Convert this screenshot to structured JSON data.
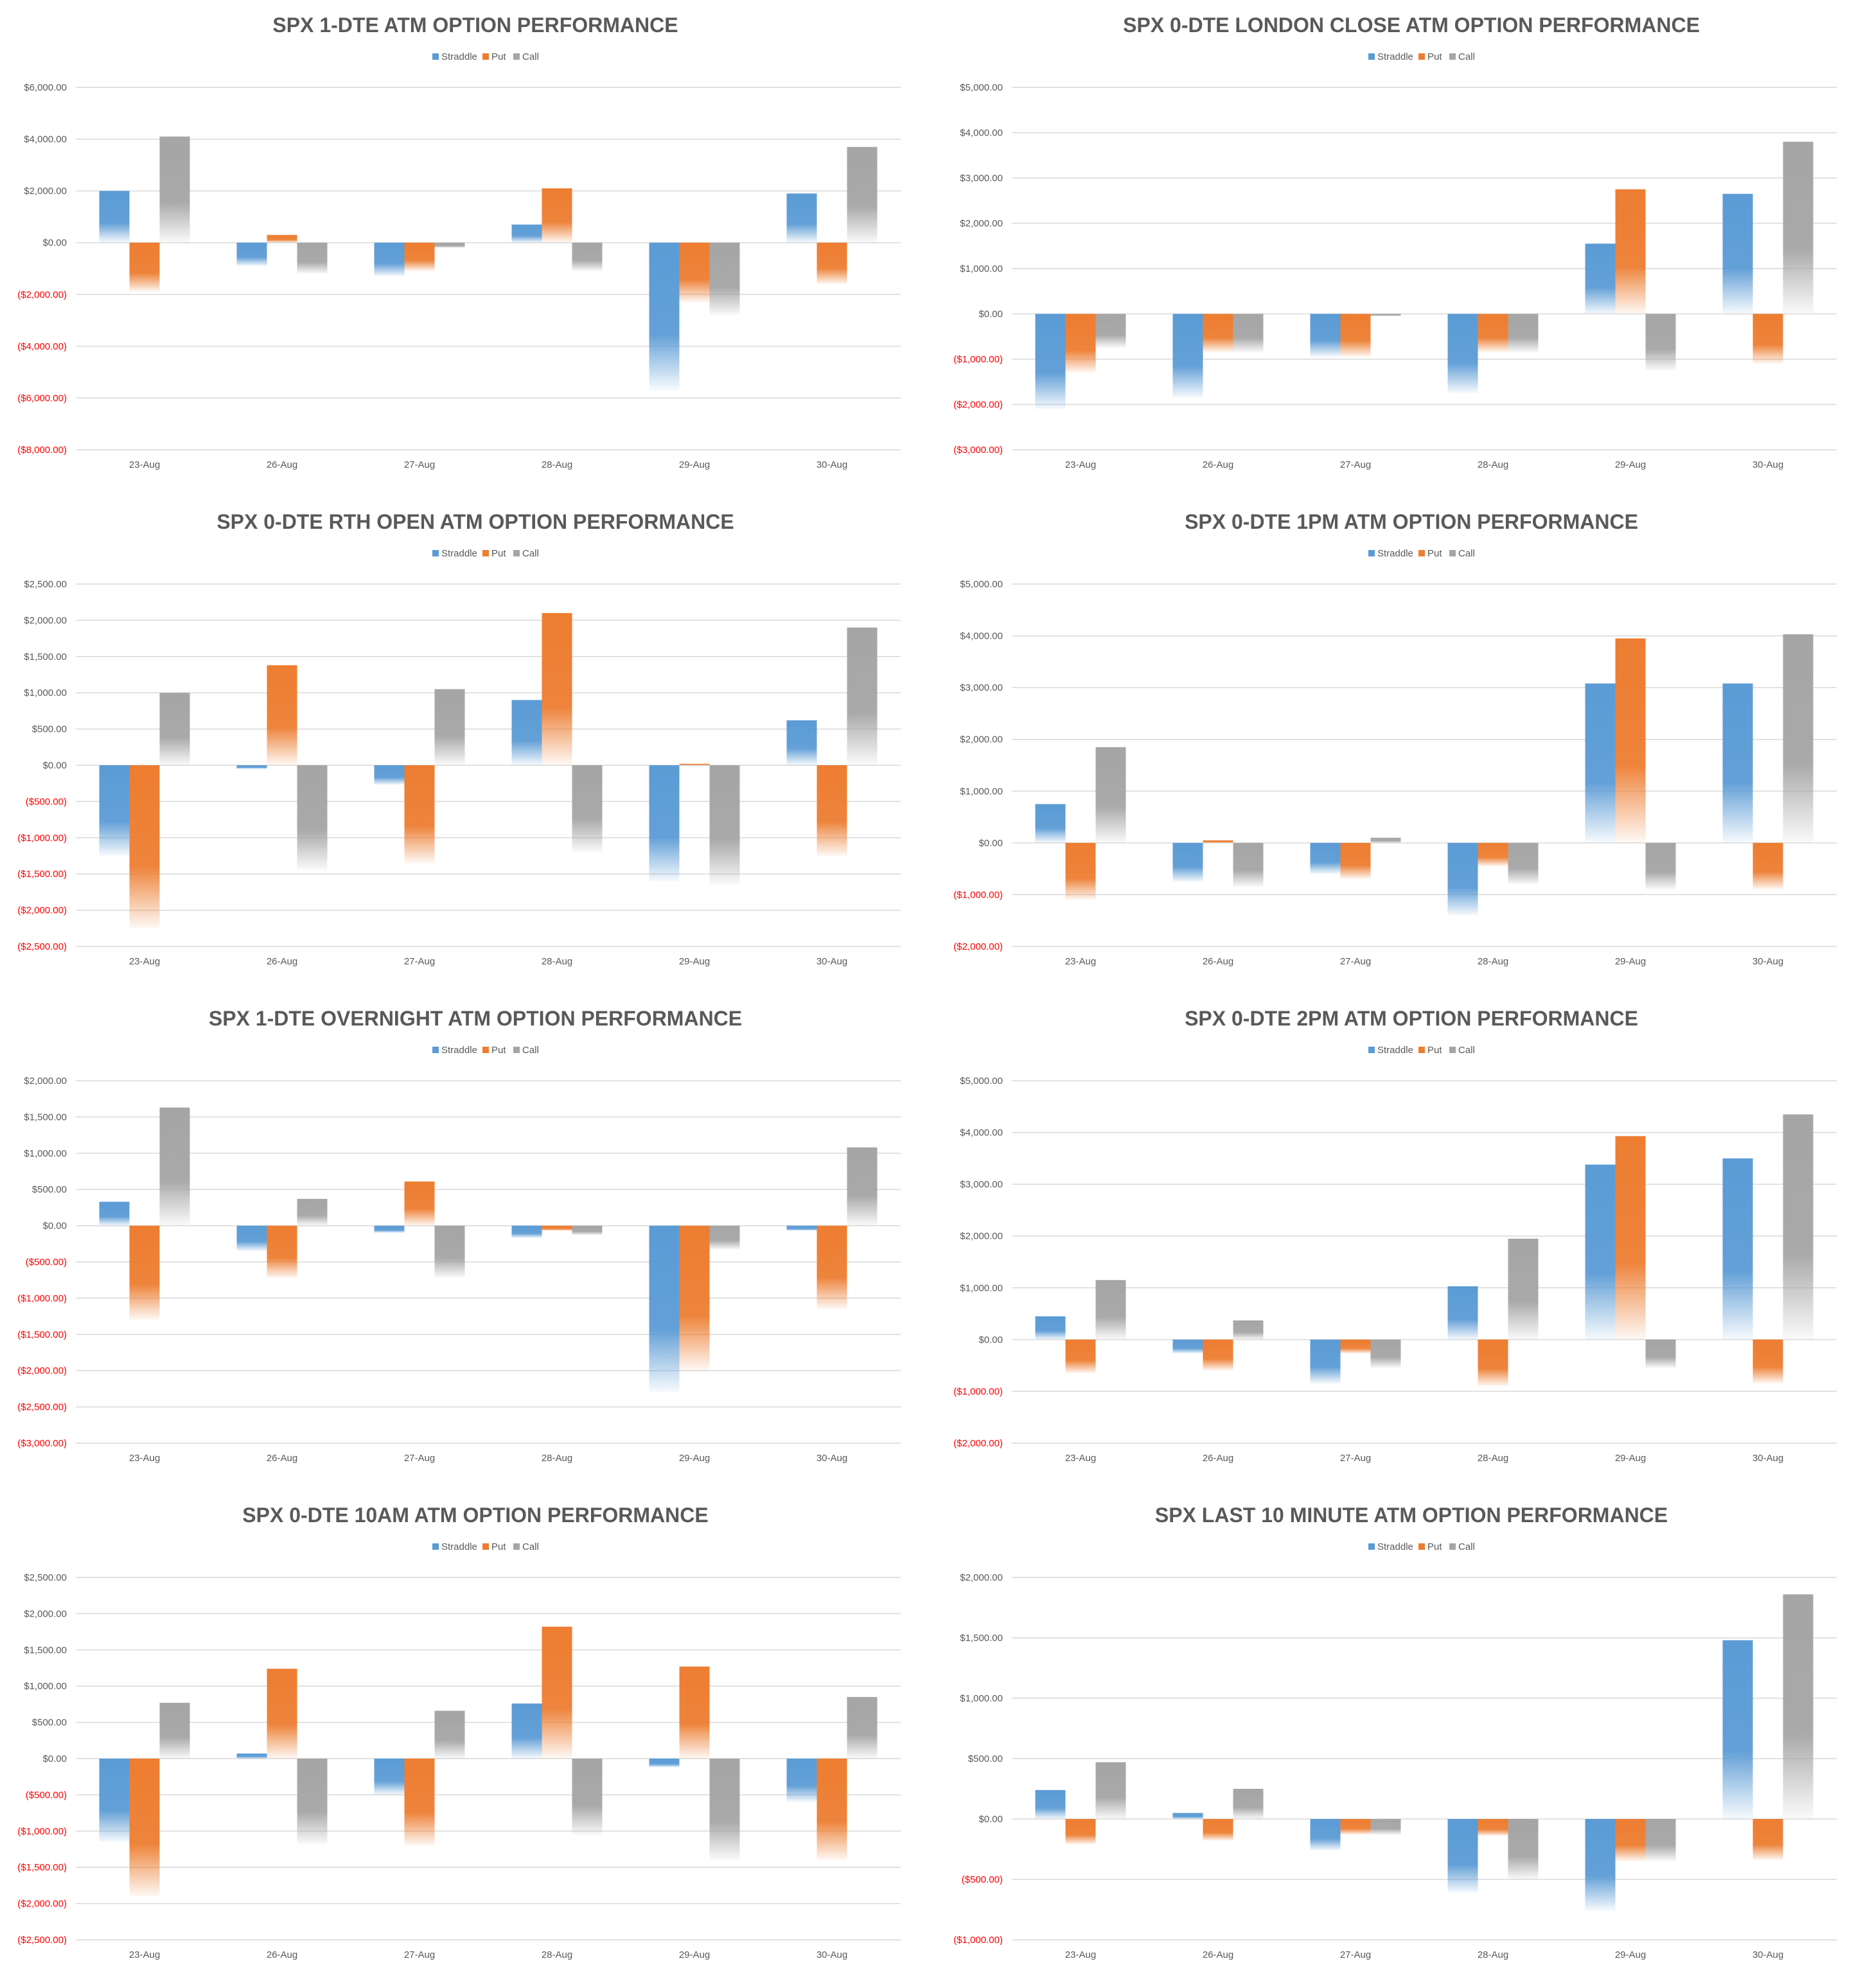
{
  "colors": {
    "Straddle": "#5b9bd5",
    "Put": "#ed7d31",
    "Call": "#a5a5a5",
    "negative_tick": "#ff0000",
    "positive_tick": "#595959",
    "gridline": "#d9d9d9"
  },
  "chart_data": [
    {
      "type": "bar",
      "title": "SPX 1-DTE ATM OPTION PERFORMANCE",
      "categories": [
        "23-Aug",
        "26-Aug",
        "27-Aug",
        "28-Aug",
        "29-Aug",
        "30-Aug"
      ],
      "series": [
        {
          "name": "Straddle",
          "values": [
            2000,
            -900,
            -1300,
            700,
            -5700,
            1900
          ]
        },
        {
          "name": "Put",
          "values": [
            -1900,
            300,
            -1100,
            2100,
            -2300,
            -1600
          ]
        },
        {
          "name": "Call",
          "values": [
            4100,
            -1200,
            -200,
            -1100,
            -2800,
            3700
          ]
        }
      ],
      "yticks": [
        6000,
        4000,
        2000,
        0,
        -2000,
        -4000,
        -6000,
        -8000
      ],
      "ytick_labels": [
        "$6,000.00",
        "$4,000.00",
        "$2,000.00",
        "$0.00",
        "($2,000.00)",
        "($4,000.00)",
        "($6,000.00)",
        "($8,000.00)"
      ],
      "ylim": [
        -8000,
        6000
      ],
      "legend": "top-center",
      "grid": true
    },
    {
      "type": "bar",
      "title": "SPX 0-DTE  LONDON CLOSE ATM OPTION PERFORMANCE",
      "categories": [
        "23-Aug",
        "26-Aug",
        "27-Aug",
        "28-Aug",
        "29-Aug",
        "30-Aug"
      ],
      "series": [
        {
          "name": "Straddle",
          "values": [
            -2100,
            -1850,
            -950,
            -1750,
            1550,
            2650
          ]
        },
        {
          "name": "Put",
          "values": [
            -1300,
            -850,
            -950,
            -850,
            2750,
            -1100
          ]
        },
        {
          "name": "Call",
          "values": [
            -750,
            -850,
            -50,
            -850,
            -1250,
            3800
          ]
        }
      ],
      "yticks": [
        5000,
        4000,
        3000,
        2000,
        1000,
        0,
        -1000,
        -2000,
        -3000
      ],
      "ytick_labels": [
        "$5,000.00",
        "$4,000.00",
        "$3,000.00",
        "$2,000.00",
        "$1,000.00",
        "$0.00",
        "($1,000.00)",
        "($2,000.00)",
        "($3,000.00)"
      ],
      "ylim": [
        -3000,
        5000
      ],
      "legend": "top-center",
      "grid": true
    },
    {
      "type": "bar",
      "title": "SPX 0-DTE RTH OPEN ATM OPTION PERFORMANCE",
      "categories": [
        "23-Aug",
        "26-Aug",
        "27-Aug",
        "28-Aug",
        "29-Aug",
        "30-Aug"
      ],
      "series": [
        {
          "name": "Straddle",
          "values": [
            -1250,
            -50,
            -270,
            900,
            -1600,
            620
          ]
        },
        {
          "name": "Put",
          "values": [
            -2250,
            1380,
            -1350,
            2100,
            20,
            -1250
          ]
        },
        {
          "name": "Call",
          "values": [
            1000,
            -1450,
            1050,
            -1200,
            -1650,
            1900
          ]
        }
      ],
      "yticks": [
        2500,
        2000,
        1500,
        1000,
        500,
        0,
        -500,
        -1000,
        -1500,
        -2000,
        -2500
      ],
      "ytick_labels": [
        "$2,500.00",
        "$2,000.00",
        "$1,500.00",
        "$1,000.00",
        "$500.00",
        "$0.00",
        "($500.00)",
        "($1,000.00)",
        "($1,500.00)",
        "($2,000.00)",
        "($2,500.00)"
      ],
      "ylim": [
        -2500,
        2500
      ],
      "legend": "top-center",
      "grid": true
    },
    {
      "type": "bar",
      "title": "SPX 0-DTE 1PM ATM OPTION PERFORMANCE",
      "categories": [
        "23-Aug",
        "26-Aug",
        "27-Aug",
        "28-Aug",
        "29-Aug",
        "30-Aug"
      ],
      "series": [
        {
          "name": "Straddle",
          "values": [
            750,
            -750,
            -600,
            -1400,
            3080,
            3080
          ]
        },
        {
          "name": "Put",
          "values": [
            -1100,
            50,
            -700,
            -450,
            3950,
            -900
          ]
        },
        {
          "name": "Call",
          "values": [
            1850,
            -850,
            100,
            -800,
            -900,
            4030
          ]
        }
      ],
      "yticks": [
        5000,
        4000,
        3000,
        2000,
        1000,
        0,
        -1000,
        -2000
      ],
      "ytick_labels": [
        "$5,000.00",
        "$4,000.00",
        "$3,000.00",
        "$2,000.00",
        "$1,000.00",
        "$0.00",
        "($1,000.00)",
        "($2,000.00)"
      ],
      "ylim": [
        -2000,
        5000
      ],
      "legend": "top-center",
      "grid": true
    },
    {
      "type": "bar",
      "title": "SPX 1-DTE OVERNIGHT ATM OPTION PERFORMANCE",
      "categories": [
        "23-Aug",
        "26-Aug",
        "27-Aug",
        "28-Aug",
        "29-Aug",
        "30-Aug"
      ],
      "series": [
        {
          "name": "Straddle",
          "values": [
            330,
            -350,
            -100,
            -170,
            -2300,
            -70
          ]
        },
        {
          "name": "Put",
          "values": [
            -1300,
            -720,
            610,
            -70,
            -2000,
            -1150
          ]
        },
        {
          "name": "Call",
          "values": [
            1630,
            370,
            -720,
            -130,
            -330,
            1080
          ]
        }
      ],
      "yticks": [
        2000,
        1500,
        1000,
        500,
        0,
        -500,
        -1000,
        -1500,
        -2000,
        -2500,
        -3000
      ],
      "ytick_labels": [
        "$2,000.00",
        "$1,500.00",
        "$1,000.00",
        "$500.00",
        "$0.00",
        "($500.00)",
        "($1,000.00)",
        "($1,500.00)",
        "($2,000.00)",
        "($2,500.00)",
        "($3,000.00)"
      ],
      "ylim": [
        -3000,
        2000
      ],
      "legend": "top-center",
      "grid": true
    },
    {
      "type": "bar",
      "title": "SPX 0-DTE 2PM ATM OPTION PERFORMANCE",
      "categories": [
        "23-Aug",
        "26-Aug",
        "27-Aug",
        "28-Aug",
        "29-Aug",
        "30-Aug"
      ],
      "series": [
        {
          "name": "Straddle",
          "values": [
            450,
            -270,
            -850,
            1030,
            3380,
            3500
          ]
        },
        {
          "name": "Put",
          "values": [
            -650,
            -600,
            -270,
            -900,
            3930,
            -850
          ]
        },
        {
          "name": "Call",
          "values": [
            1150,
            370,
            -550,
            1950,
            -550,
            4350
          ]
        }
      ],
      "yticks": [
        5000,
        4000,
        3000,
        2000,
        1000,
        0,
        -1000,
        -2000
      ],
      "ytick_labels": [
        "$5,000.00",
        "$4,000.00",
        "$3,000.00",
        "$2,000.00",
        "$1,000.00",
        "$0.00",
        "($1,000.00)",
        "($2,000.00)"
      ],
      "ylim": [
        -2000,
        5000
      ],
      "legend": "top-center",
      "grid": true
    },
    {
      "type": "bar",
      "title": "SPX 0-DTE 10AM ATM OPTION PERFORMANCE",
      "categories": [
        "23-Aug",
        "26-Aug",
        "27-Aug",
        "28-Aug",
        "29-Aug",
        "30-Aug"
      ],
      "series": [
        {
          "name": "Straddle",
          "values": [
            -1150,
            70,
            -500,
            760,
            -120,
            -600
          ]
        },
        {
          "name": "Put",
          "values": [
            -1900,
            1240,
            -1200,
            1820,
            1270,
            -1400
          ]
        },
        {
          "name": "Call",
          "values": [
            770,
            -1180,
            660,
            -1050,
            -1400,
            850
          ]
        }
      ],
      "yticks": [
        2500,
        2000,
        1500,
        1000,
        500,
        0,
        -500,
        -1000,
        -1500,
        -2000,
        -2500
      ],
      "ytick_labels": [
        "$2,500.00",
        "$2,000.00",
        "$1,500.00",
        "$1,000.00",
        "$500.00",
        "$0.00",
        "($500.00)",
        "($1,000.00)",
        "($1,500.00)",
        "($2,000.00)",
        "($2,500.00)"
      ],
      "ylim": [
        -2500,
        2500
      ],
      "legend": "top-center",
      "grid": true
    },
    {
      "type": "bar",
      "title": "SPX LAST 10 MINUTE ATM OPTION PERFORMANCE",
      "categories": [
        "23-Aug",
        "26-Aug",
        "27-Aug",
        "28-Aug",
        "29-Aug",
        "30-Aug"
      ],
      "series": [
        {
          "name": "Straddle",
          "values": [
            240,
            50,
            -260,
            -610,
            -760,
            1480
          ]
        },
        {
          "name": "Put",
          "values": [
            -210,
            -180,
            -130,
            -140,
            -350,
            -340
          ]
        },
        {
          "name": "Call",
          "values": [
            470,
            250,
            -130,
            -500,
            -350,
            1860
          ]
        }
      ],
      "yticks": [
        2000,
        1500,
        1000,
        500,
        0,
        -500,
        -1000
      ],
      "ytick_labels": [
        "$2,000.00",
        "$1,500.00",
        "$1,000.00",
        "$500.00",
        "$0.00",
        "($500.00)",
        "($1,000.00)"
      ],
      "ylim": [
        -1000,
        2000
      ],
      "legend": "top-center",
      "grid": true
    }
  ]
}
